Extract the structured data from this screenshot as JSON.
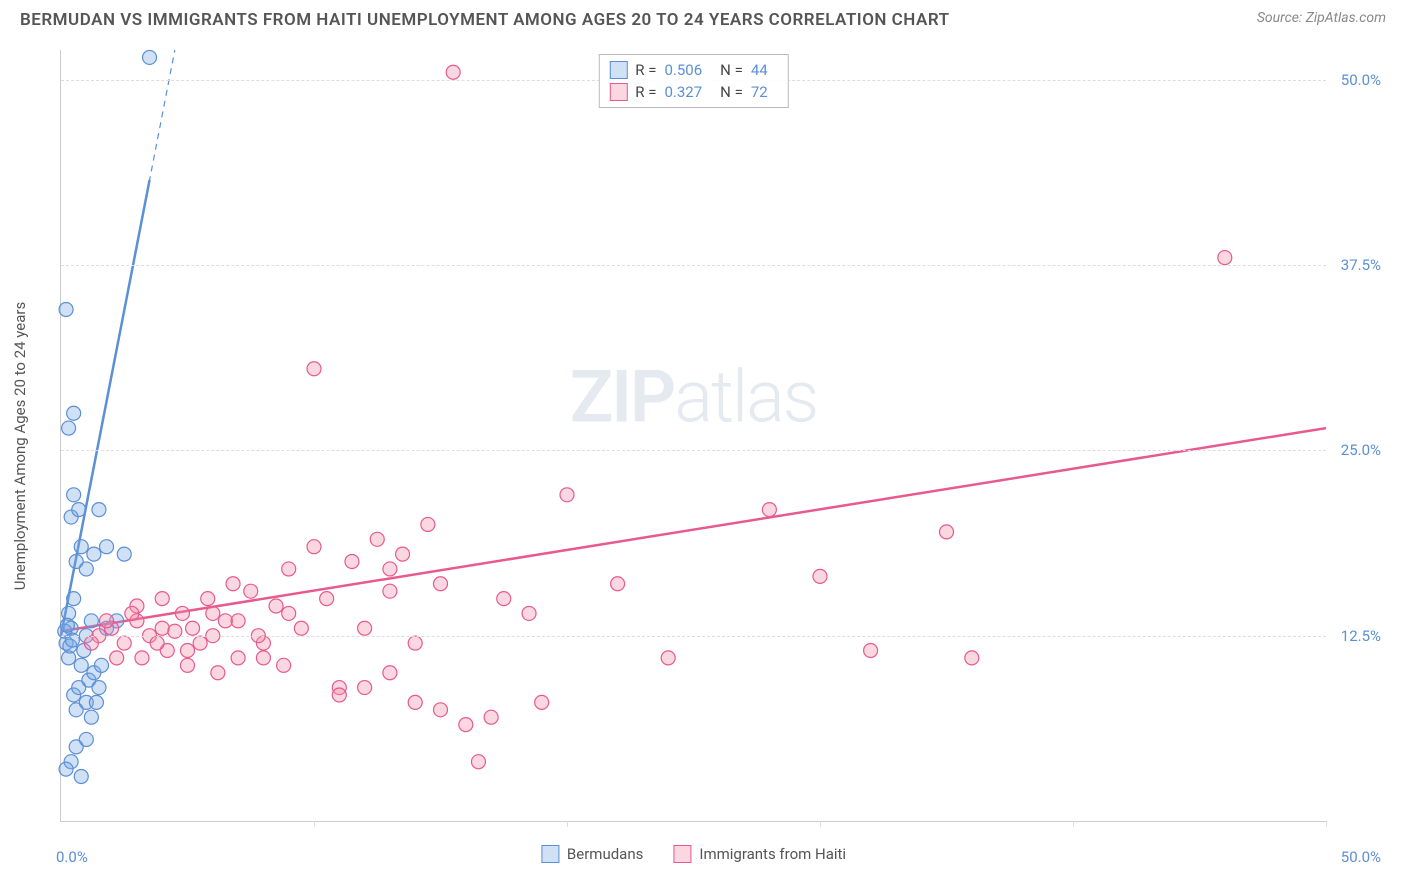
{
  "title": "BERMUDAN VS IMMIGRANTS FROM HAITI UNEMPLOYMENT AMONG AGES 20 TO 24 YEARS CORRELATION CHART",
  "source": "Source: ZipAtlas.com",
  "y_axis_label": "Unemployment Among Ages 20 to 24 years",
  "watermark_prefix": "ZIP",
  "watermark_suffix": "atlas",
  "chart": {
    "type": "scatter",
    "xlim": [
      0,
      50
    ],
    "ylim": [
      0,
      52
    ],
    "x_ticks": [
      0,
      10,
      20,
      30,
      40,
      50
    ],
    "y_ticks": [
      12.5,
      25.0,
      37.5,
      50.0
    ],
    "x_tick_labels": {
      "left": "0.0%",
      "right": "50.0%"
    },
    "y_tick_labels": [
      "12.5%",
      "25.0%",
      "37.5%",
      "50.0%"
    ],
    "grid_color": "#dddddd",
    "background_color": "#ffffff",
    "marker_radius": 7,
    "marker_stroke_width": 1.2,
    "trend_line_width": 2.5,
    "trend_dash_width": 1.2,
    "series": [
      {
        "name": "Bermudans",
        "color_fill": "rgba(120,170,230,0.35)",
        "color_stroke": "#5b8fd6",
        "R": "0.506",
        "N": "44",
        "trend": {
          "x1": 0,
          "y1": 12.5,
          "x2": 4.5,
          "y2": 52,
          "solid_cap_x": 3.5
        },
        "points": [
          [
            0.2,
            12.0
          ],
          [
            0.3,
            11.0
          ],
          [
            0.4,
            13.0
          ],
          [
            0.5,
            8.5
          ],
          [
            0.6,
            7.5
          ],
          [
            0.7,
            9.0
          ],
          [
            0.8,
            10.5
          ],
          [
            0.3,
            14.0
          ],
          [
            0.5,
            15.0
          ],
          [
            0.6,
            17.5
          ],
          [
            0.8,
            18.5
          ],
          [
            0.4,
            20.5
          ],
          [
            0.5,
            22.0
          ],
          [
            0.7,
            21.0
          ],
          [
            0.3,
            26.5
          ],
          [
            0.5,
            27.5
          ],
          [
            0.2,
            34.5
          ],
          [
            1.0,
            8.0
          ],
          [
            1.1,
            9.5
          ],
          [
            1.2,
            7.0
          ],
          [
            1.3,
            10.0
          ],
          [
            1.0,
            12.5
          ],
          [
            1.2,
            13.5
          ],
          [
            0.9,
            11.5
          ],
          [
            1.5,
            9.0
          ],
          [
            1.6,
            10.5
          ],
          [
            1.4,
            8.0
          ],
          [
            1.8,
            13.0
          ],
          [
            1.0,
            17.0
          ],
          [
            1.3,
            18.0
          ],
          [
            1.5,
            21.0
          ],
          [
            1.8,
            18.5
          ],
          [
            2.2,
            13.5
          ],
          [
            2.5,
            18.0
          ],
          [
            0.6,
            5.0
          ],
          [
            0.4,
            4.0
          ],
          [
            1.0,
            5.5
          ],
          [
            0.2,
            3.5
          ],
          [
            0.8,
            3.0
          ],
          [
            3.5,
            51.5
          ],
          [
            0.15,
            12.8
          ],
          [
            0.25,
            13.2
          ],
          [
            0.35,
            11.8
          ],
          [
            0.45,
            12.2
          ]
        ]
      },
      {
        "name": "Immigrants from Haiti",
        "color_fill": "rgba(240,140,170,0.35)",
        "color_stroke": "#e75a8d",
        "R": "0.327",
        "N": "72",
        "trend": {
          "x1": 0,
          "y1": 12.8,
          "x2": 50,
          "y2": 26.5,
          "solid_cap_x": 50
        },
        "points": [
          [
            2.0,
            13.0
          ],
          [
            2.5,
            12.0
          ],
          [
            3.0,
            13.5
          ],
          [
            3.2,
            11.0
          ],
          [
            3.5,
            12.5
          ],
          [
            4.0,
            13.0
          ],
          [
            4.2,
            11.5
          ],
          [
            4.5,
            12.8
          ],
          [
            5.0,
            10.5
          ],
          [
            5.2,
            13.0
          ],
          [
            5.5,
            12.0
          ],
          [
            6.0,
            14.0
          ],
          [
            6.2,
            10.0
          ],
          [
            6.5,
            13.5
          ],
          [
            7.0,
            11.0
          ],
          [
            7.5,
            15.5
          ],
          [
            8.0,
            12.0
          ],
          [
            8.5,
            14.5
          ],
          [
            9.0,
            17.0
          ],
          [
            9.5,
            13.0
          ],
          [
            10.0,
            18.5
          ],
          [
            10.5,
            15.0
          ],
          [
            11.0,
            9.0
          ],
          [
            11.5,
            17.5
          ],
          [
            12.0,
            13.0
          ],
          [
            12.5,
            19.0
          ],
          [
            13.0,
            15.5
          ],
          [
            13.5,
            18.0
          ],
          [
            14.0,
            12.0
          ],
          [
            14.5,
            20.0
          ],
          [
            15.0,
            16.0
          ],
          [
            10.0,
            30.5
          ],
          [
            15.5,
            50.5
          ],
          [
            11.0,
            8.5
          ],
          [
            12.0,
            9.0
          ],
          [
            13.0,
            10.0
          ],
          [
            16.0,
            6.5
          ],
          [
            15.0,
            7.5
          ],
          [
            14.0,
            8.0
          ],
          [
            16.5,
            4.0
          ],
          [
            17.0,
            7.0
          ],
          [
            20.0,
            22.0
          ],
          [
            22.0,
            16.0
          ],
          [
            24.0,
            11.0
          ],
          [
            28.0,
            21.0
          ],
          [
            30.0,
            16.5
          ],
          [
            32.0,
            11.5
          ],
          [
            35.0,
            19.5
          ],
          [
            36.0,
            11.0
          ],
          [
            46.0,
            38.0
          ],
          [
            3.0,
            14.5
          ],
          [
            4.0,
            15.0
          ],
          [
            5.0,
            11.5
          ],
          [
            6.0,
            12.5
          ],
          [
            7.0,
            13.5
          ],
          [
            8.0,
            11.0
          ],
          [
            9.0,
            14.0
          ],
          [
            2.2,
            11.0
          ],
          [
            2.8,
            14.0
          ],
          [
            3.8,
            12.0
          ],
          [
            4.8,
            14.0
          ],
          [
            5.8,
            15.0
          ],
          [
            6.8,
            16.0
          ],
          [
            7.8,
            12.5
          ],
          [
            8.8,
            10.5
          ],
          [
            1.5,
            12.5
          ],
          [
            1.8,
            13.5
          ],
          [
            13.0,
            17.0
          ],
          [
            19.0,
            8.0
          ],
          [
            17.5,
            15.0
          ],
          [
            18.5,
            14.0
          ],
          [
            1.2,
            12.0
          ]
        ]
      }
    ]
  },
  "top_legend": {
    "row1": {
      "R_label": "R =",
      "N_label": "N ="
    },
    "row2": {
      "R_label": "R =",
      "N_label": "N ="
    }
  },
  "bottom_legend": {
    "label1": "Bermudans",
    "label2": "Immigrants from Haiti"
  }
}
